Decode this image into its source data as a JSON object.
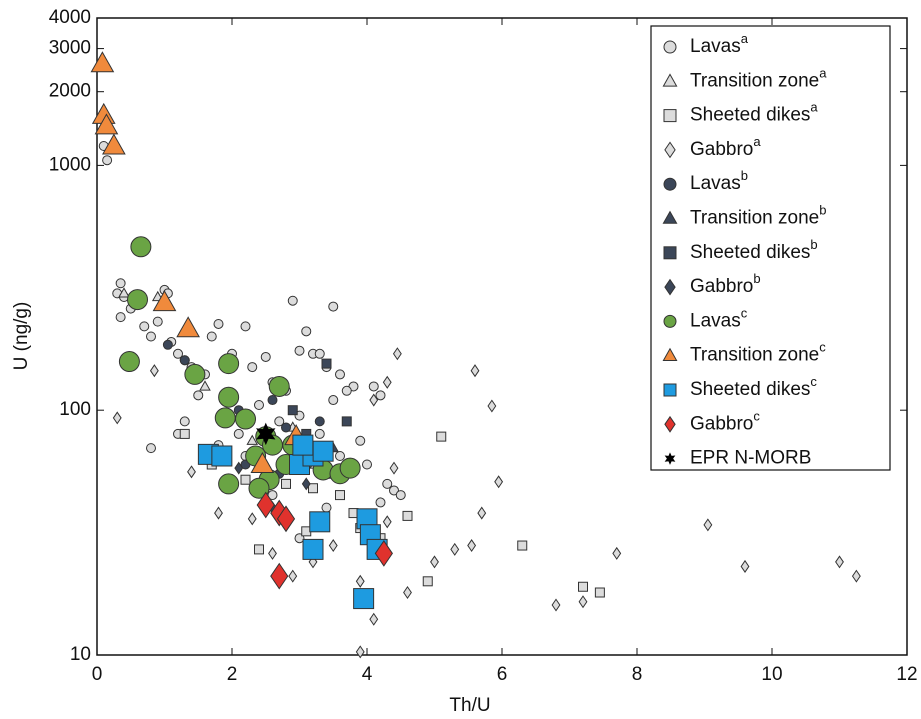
{
  "chart_data": {
    "type": "scatter",
    "xlabel": "Th/U",
    "ylabel": "U (ng/g)",
    "xlim": [
      0,
      12
    ],
    "xticks": [
      0,
      2,
      4,
      6,
      8,
      10,
      12
    ],
    "ylim": [
      10,
      4000
    ],
    "yscale": "log",
    "yticks": [
      10,
      100,
      1000,
      2000,
      3000,
      4000
    ],
    "legend": "upper right",
    "series": [
      {
        "name": "Lavas",
        "superscript": "a",
        "marker": "circle",
        "color": "#dcdcdc",
        "size": "small",
        "x": [
          0.1,
          0.15,
          0.35,
          0.3,
          0.4,
          0.5,
          0.35,
          0.7,
          0.8,
          0.9,
          1.0,
          1.05,
          1.1,
          1.2,
          1.3,
          1.4,
          1.6,
          1.7,
          1.8,
          2.2,
          2.0,
          2.3,
          2.5,
          2.6,
          2.8,
          2.9,
          3.0,
          3.2,
          3.1,
          3.3,
          3.5,
          3.4,
          3.6,
          3.8,
          4.1,
          4.2,
          4.3,
          4.4,
          4.2,
          4.5,
          3.7,
          2.4,
          2.7,
          3.0,
          3.3,
          1.3,
          1.2,
          0.8,
          3.5,
          1.5,
          2.1,
          2.9,
          3.6,
          3.9,
          1.8,
          2.2,
          4.0,
          3.4,
          2.6,
          3.0
        ],
        "values": [
          1200,
          1050,
          330,
          300,
          290,
          260,
          240,
          220,
          200,
          230,
          310,
          300,
          190,
          170,
          160,
          150,
          140,
          200,
          225,
          220,
          170,
          150,
          165,
          130,
          120,
          280,
          175,
          170,
          210,
          170,
          265,
          150,
          140,
          125,
          125,
          115,
          50,
          47,
          42,
          45,
          120,
          105,
          90,
          95,
          80,
          90,
          80,
          70,
          110,
          115,
          80,
          60,
          65,
          75,
          72,
          65,
          60,
          40,
          45,
          30
        ]
      },
      {
        "name": "Transition zone",
        "superscript": "a",
        "marker": "triangle",
        "color": "#dcdcdc",
        "size": "small",
        "x": [
          0.4,
          0.9,
          1.6,
          2.3,
          2.9,
          3.2
        ],
        "values": [
          300,
          290,
          125,
          75,
          85,
          60
        ]
      },
      {
        "name": "Sheeted dikes",
        "superscript": "a",
        "marker": "square",
        "color": "#dcdcdc",
        "size": "small",
        "x": [
          1.3,
          1.7,
          2.5,
          2.8,
          3.2,
          3.6,
          3.8,
          4.0,
          4.2,
          3.1,
          2.4,
          5.1,
          4.9,
          6.3,
          7.2,
          7.45,
          2.9,
          3.5,
          4.6,
          3.3,
          2.2,
          3.9
        ],
        "values": [
          80,
          60,
          55,
          50,
          48,
          45,
          38,
          36,
          30,
          32,
          27,
          78,
          20,
          28,
          19,
          18,
          70,
          55,
          37,
          62,
          52,
          33
        ]
      },
      {
        "name": "Gabbro",
        "superscript": "a",
        "marker": "diamond",
        "color": "#dcdcdc",
        "size": "small",
        "x": [
          0.3,
          0.85,
          1.4,
          1.8,
          2.3,
          2.6,
          2.9,
          3.2,
          3.5,
          3.9,
          3.9,
          4.1,
          4.45,
          4.3,
          4.1,
          4.6,
          5.0,
          5.3,
          5.55,
          5.7,
          5.6,
          5.85,
          5.95,
          6.8,
          7.2,
          7.7,
          9.05,
          9.6,
          11.0,
          11.25,
          4.4,
          4.3
        ],
        "values": [
          93,
          145,
          56,
          38,
          36,
          26,
          21,
          24,
          28,
          20,
          10.3,
          14,
          170,
          130,
          110,
          18,
          24,
          27,
          28,
          38,
          145,
          104,
          51,
          16,
          16.5,
          26,
          34,
          23,
          24,
          21,
          58,
          35
        ]
      },
      {
        "name": "Lavas",
        "superscript": "b",
        "marker": "circle",
        "color": "#3b4658",
        "size": "small",
        "x": [
          1.3,
          2.1,
          2.6,
          2.5,
          2.8,
          3.3,
          3.0,
          2.2,
          1.05,
          2.7
        ],
        "values": [
          160,
          100,
          110,
          75,
          85,
          90,
          65,
          60,
          185,
          55
        ]
      },
      {
        "name": "Transition zone",
        "superscript": "b",
        "marker": "triangle",
        "color": "#3b4658",
        "size": "small",
        "x": [
          2.5,
          3.5
        ],
        "values": [
          60,
          70
        ]
      },
      {
        "name": "Sheeted dikes",
        "superscript": "b",
        "marker": "square",
        "color": "#3b4658",
        "size": "small",
        "x": [
          3.4,
          2.9,
          3.1,
          3.7
        ],
        "values": [
          155,
          100,
          80,
          90
        ]
      },
      {
        "name": "Gabbro",
        "superscript": "b",
        "marker": "diamond",
        "color": "#3b4658",
        "size": "small",
        "x": [
          2.1,
          2.6,
          3.1
        ],
        "values": [
          58,
          40,
          50
        ]
      },
      {
        "name": "Lavas",
        "superscript": "c",
        "marker": "circle",
        "color": "#6aa444",
        "size": "large",
        "x": [
          0.65,
          0.6,
          0.48,
          1.45,
          1.95,
          1.95,
          2.2,
          1.9,
          2.7,
          2.5,
          2.6,
          2.35,
          2.8,
          2.55,
          1.95,
          3.05,
          3.35,
          3.6,
          3.75,
          2.9,
          2.4
        ],
        "values": [
          465,
          283,
          158,
          140,
          155,
          113,
          92,
          93,
          125,
          78,
          72,
          65,
          60,
          52,
          50,
          62,
          57,
          55,
          58,
          72,
          48
        ]
      },
      {
        "name": "Transition zone",
        "superscript": "c",
        "marker": "triangle",
        "color": "#f08a3c",
        "size": "large",
        "x": [
          0.08,
          0.1,
          0.14,
          0.25,
          1.0,
          1.35,
          2.45,
          2.95
        ],
        "values": [
          2600,
          1600,
          1450,
          1200,
          275,
          215,
          60,
          78
        ]
      },
      {
        "name": "Sheeted dikes",
        "superscript": "c",
        "marker": "square",
        "color": "#1e9be0",
        "size": "large",
        "x": [
          1.65,
          1.85,
          3.0,
          3.2,
          3.35,
          3.3,
          3.2,
          4.0,
          4.05,
          4.15,
          3.95,
          3.05
        ],
        "values": [
          66,
          65,
          60,
          65,
          68,
          35,
          27,
          36,
          31,
          27,
          17,
          72
        ]
      },
      {
        "name": "Gabbro",
        "superscript": "c",
        "marker": "diamond",
        "color": "#e0322d",
        "size": "large",
        "x": [
          2.5,
          2.7,
          2.8,
          2.7,
          4.25
        ],
        "values": [
          41,
          38,
          36,
          21,
          26
        ]
      },
      {
        "name": "EPR N-MORB",
        "marker": "star",
        "color": "#000000",
        "size": "large",
        "x": [
          2.5
        ],
        "values": [
          80
        ]
      }
    ]
  }
}
